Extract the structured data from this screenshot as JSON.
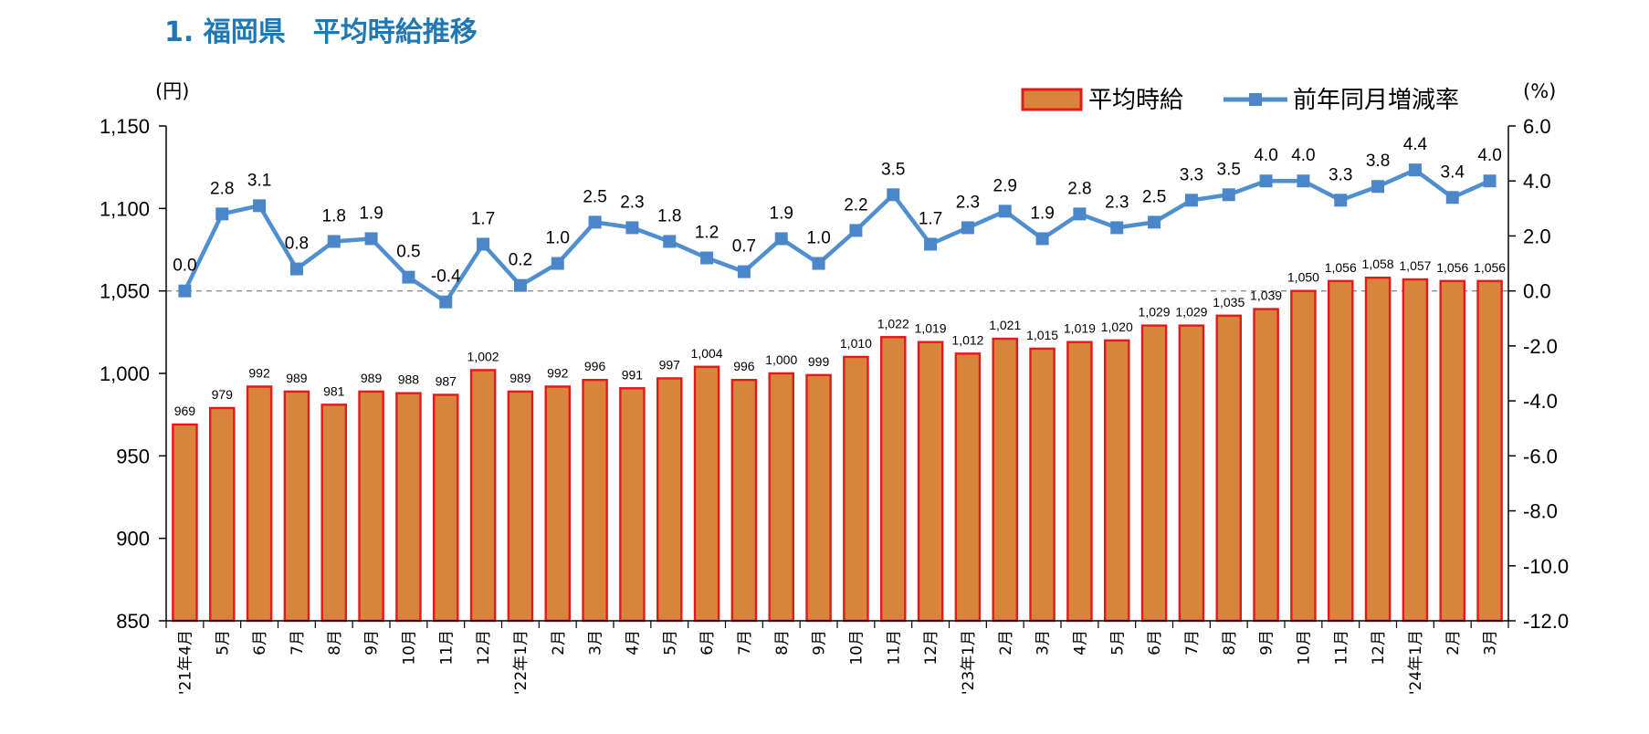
{
  "title": "1. 福岡県　平均時給推移",
  "chart_data": {
    "type": "bar+line",
    "categories": [
      "'21年4月",
      "5月",
      "6月",
      "7月",
      "8月",
      "9月",
      "10月",
      "11月",
      "12月",
      "'22年1月",
      "2月",
      "3月",
      "4月",
      "5月",
      "6月",
      "7月",
      "8月",
      "9月",
      "10月",
      "11月",
      "12月",
      "'23年1月",
      "2月",
      "3月",
      "4月",
      "5月",
      "6月",
      "7月",
      "8月",
      "9月",
      "10月",
      "11月",
      "12月",
      "'24年1月",
      "2月",
      "3月"
    ],
    "series": [
      {
        "name": "平均時給",
        "type": "bar",
        "axis": "left",
        "values": [
          969,
          979,
          992,
          989,
          981,
          989,
          988,
          987,
          1002,
          989,
          992,
          996,
          991,
          997,
          1004,
          996,
          1000,
          999,
          1010,
          1022,
          1019,
          1012,
          1021,
          1015,
          1019,
          1020,
          1029,
          1029,
          1035,
          1039,
          1050,
          1056,
          1058,
          1057,
          1056,
          1056
        ],
        "labels": [
          "969",
          "979",
          "992",
          "989",
          "981",
          "989",
          "988",
          "987",
          "1,002",
          "989",
          "992",
          "996",
          "991",
          "997",
          "1,004",
          "996",
          "1,000",
          "999",
          "1,010",
          "1,022",
          "1,019",
          "1,012",
          "1,021",
          "1,015",
          "1,019",
          "1,020",
          "1,029",
          "1,029",
          "1,035",
          "1,039",
          "1,050",
          "1,056",
          "1,058",
          "1,057",
          "1,056",
          "1,056"
        ]
      },
      {
        "name": "前年同月増減率",
        "type": "line",
        "axis": "right",
        "values": [
          0.0,
          2.8,
          3.1,
          0.8,
          1.8,
          1.9,
          0.5,
          -0.4,
          1.7,
          0.2,
          1.0,
          2.5,
          2.3,
          1.8,
          1.2,
          0.7,
          1.9,
          1.0,
          2.2,
          3.5,
          1.7,
          2.3,
          2.9,
          1.9,
          2.8,
          2.3,
          2.5,
          3.3,
          3.5,
          4.0,
          4.0,
          3.3,
          3.8,
          4.4,
          3.4,
          4.0
        ],
        "labels": [
          "0.0",
          "2.8",
          "3.1",
          "0.8",
          "1.8",
          "1.9",
          "0.5",
          "-0.4",
          "1.7",
          "0.2",
          "1.0",
          "2.5",
          "2.3",
          "1.8",
          "1.2",
          "0.7",
          "1.9",
          "1.0",
          "2.2",
          "3.5",
          "1.7",
          "2.3",
          "2.9",
          "1.9",
          "2.8",
          "2.3",
          "2.5",
          "3.3",
          "3.5",
          "4.0",
          "4.0",
          "3.3",
          "3.8",
          "4.4",
          "3.4",
          "4.0"
        ]
      }
    ],
    "left_axis": {
      "unit": "(円)",
      "min": 850,
      "max": 1150,
      "ticks": [
        850,
        900,
        950,
        1000,
        1050,
        1100,
        1150
      ],
      "tick_labels": [
        "850",
        "900",
        "950",
        "1,000",
        "1,050",
        "1,100",
        "1,150"
      ]
    },
    "right_axis": {
      "unit": "(%)",
      "min": -12,
      "max": 6,
      "ticks": [
        -12,
        -10,
        -8,
        -6,
        -4,
        -2,
        0,
        2,
        4,
        6
      ],
      "tick_labels": [
        "-12.0",
        "-10.0",
        "-8.0",
        "-6.0",
        "-4.0",
        "-2.0",
        "0.0",
        "2.0",
        "4.0",
        "6.0"
      ]
    },
    "reference_line": {
      "axis": "right",
      "value": 0,
      "style": "dashed"
    },
    "legend": {
      "position": "top-right",
      "entries": [
        "平均時給",
        "前年同月増減率"
      ]
    },
    "colors": {
      "bar_fill": "#d8843c",
      "bar_border": "#e31a1c",
      "line": "#4f8fd0",
      "marker": "#4a86c8",
      "title": "#1f78b4"
    }
  }
}
